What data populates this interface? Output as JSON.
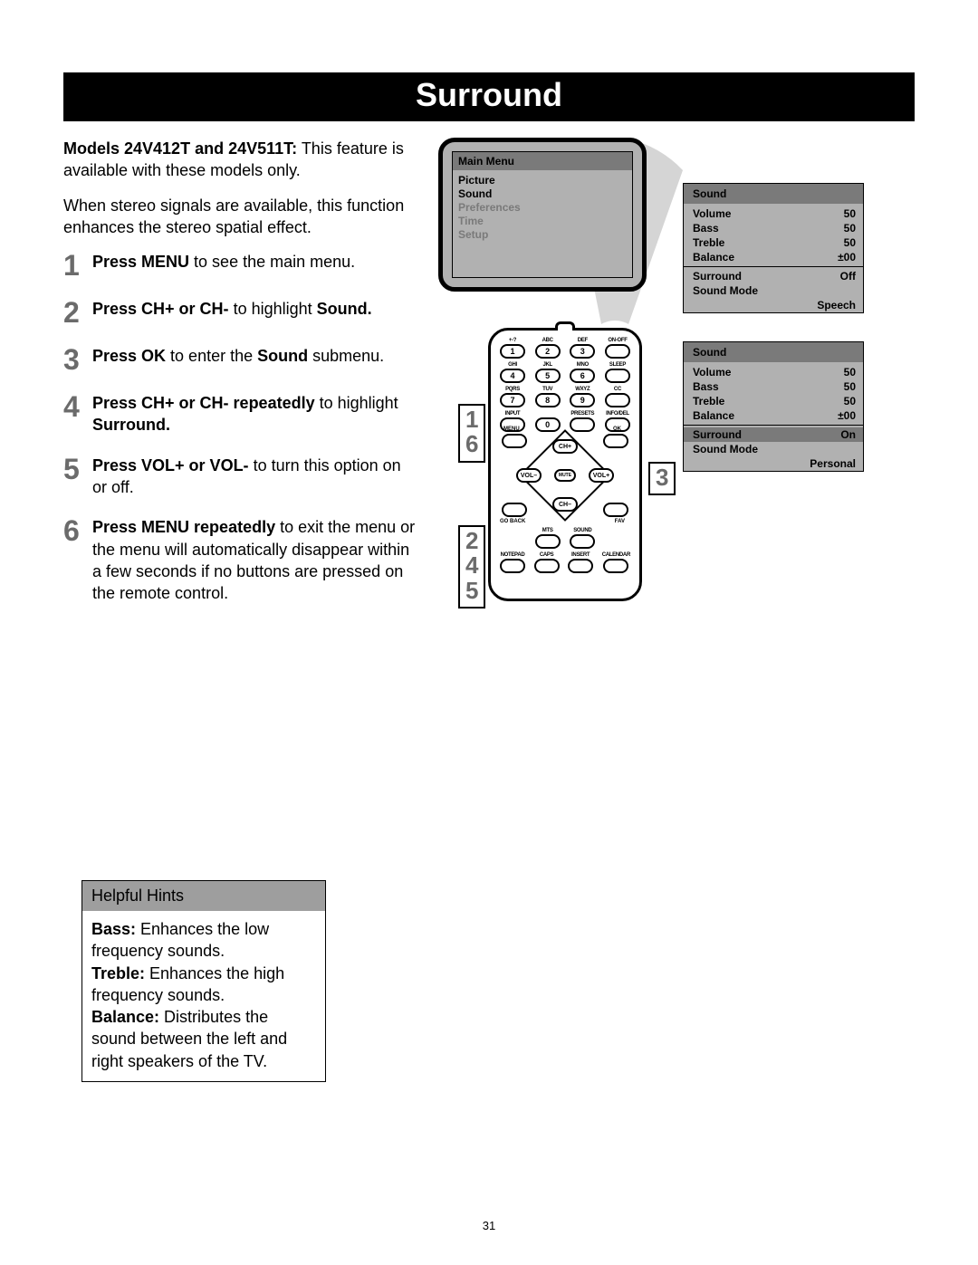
{
  "page": {
    "title": "Surround",
    "number": "31"
  },
  "intro": {
    "models_lead": "Models 24V412T and 24V511T:",
    "models_rest": " This feature is available with these models only.",
    "para2": "When stereo signals are available, this function enhances the stereo spatial effect."
  },
  "steps": [
    {
      "n": "1",
      "b1": "Press MENU",
      "r1": " to see the main menu."
    },
    {
      "n": "2",
      "b1": "Press CH+ or CH-",
      "r1": " to highlight ",
      "b2": "Sound."
    },
    {
      "n": "3",
      "b1": "Press OK",
      "r1": " to enter the ",
      "b2": "Sound",
      "r2": " submenu."
    },
    {
      "n": "4",
      "b1": "Press CH+ or CH- repeatedly",
      "r1": " to highlight ",
      "b2": "Surround."
    },
    {
      "n": "5",
      "b1": "Press VOL+ or VOL-",
      "r1": " to turn this option on or off."
    },
    {
      "n": "6",
      "b1": "Press MENU repeatedly",
      "r1": " to exit the menu or the menu will automatically disappear within a few seconds if no buttons are pressed on the remote control."
    }
  ],
  "hints": {
    "title": "Helpful Hints",
    "items": [
      {
        "b": "Bass:",
        "t": " Enhances the low frequency sounds."
      },
      {
        "b": "Treble:",
        "t": " Enhances the high frequency sounds."
      },
      {
        "b": "Balance:",
        "t": " Distributes the sound between the left and right speakers of the TV."
      }
    ]
  },
  "main_menu": {
    "title": "Main Menu",
    "items": [
      "Picture",
      "Sound",
      "Preferences",
      "Time",
      "Setup"
    ],
    "highlighted_index": 1
  },
  "sound_panel_1": {
    "title": "Sound",
    "rows": [
      {
        "l": "Volume",
        "v": "50"
      },
      {
        "l": "Bass",
        "v": "50"
      },
      {
        "l": "Treble",
        "v": "50"
      },
      {
        "l": "Balance",
        "v": "±00"
      }
    ],
    "surround": {
      "l": "Surround",
      "v": "Off"
    },
    "mode": {
      "l": "Sound Mode",
      "v": "Speech"
    },
    "highlight": "none"
  },
  "sound_panel_2": {
    "title": "Sound",
    "rows": [
      {
        "l": "Volume",
        "v": "50"
      },
      {
        "l": "Bass",
        "v": "50"
      },
      {
        "l": "Treble",
        "v": "50"
      },
      {
        "l": "Balance",
        "v": "±00"
      }
    ],
    "surround": {
      "l": "Surround",
      "v": "On"
    },
    "mode": {
      "l": "Sound Mode",
      "v": "Personal"
    },
    "highlight": "surround"
  },
  "remote": {
    "row1_labels": [
      "+-?",
      "ABC",
      "DEF",
      "ON-OFF"
    ],
    "row1_keys": [
      "1",
      "2",
      "3",
      ""
    ],
    "row2_labels": [
      "GHI",
      "JKL",
      "MNO",
      "SLEEP"
    ],
    "row2_keys": [
      "4",
      "5",
      "6",
      ""
    ],
    "row3_labels": [
      "PQRS",
      "TUV",
      "WXYZ",
      "CC"
    ],
    "row3_keys": [
      "7",
      "8",
      "9",
      ""
    ],
    "row4_labels": [
      "INPUT",
      "",
      "PRESETS",
      "INFO/DEL"
    ],
    "row4_keys": [
      "",
      "0",
      "",
      ""
    ],
    "nav": {
      "menu": "MENU",
      "ok": "OK",
      "chp": "CH+",
      "chm": "CH–",
      "volm": "VOL–",
      "volp": "VOL+",
      "mute": "MUTE",
      "goback": "GO BACK",
      "fav": "FAV"
    },
    "row5_labels": [
      "",
      "MTS",
      "SOUND",
      ""
    ],
    "row5_vis": [
      false,
      true,
      true,
      false
    ],
    "row6_labels": [
      "NOTEPAD",
      "CAPS",
      "INSERT",
      "CALENDAR"
    ]
  },
  "callouts": {
    "left1": [
      "1",
      "6"
    ],
    "left2": [
      "2",
      "4",
      "5"
    ],
    "right": [
      "3"
    ]
  },
  "colors": {
    "title_bg": "#000000",
    "title_fg": "#ffffff",
    "step_num": "#6b6b6b",
    "panel_bg": "#b1b1b1",
    "panel_hl": "#7a7a7a"
  }
}
